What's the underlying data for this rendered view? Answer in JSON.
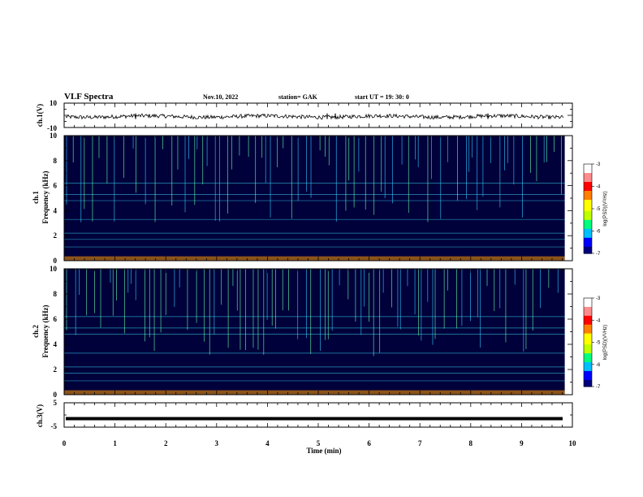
{
  "header": {
    "title": "VLF Spectra",
    "date": "Nov.10, 2022",
    "station": "station= GAK",
    "start_ut": "start  UT =   19: 30: 0"
  },
  "colorbar": {
    "label": "log(PSD)(V²/Hz)",
    "ticks": [
      "-3",
      "-4",
      "-5",
      "-6",
      "-7"
    ],
    "colors": [
      "#000000",
      "#00007f",
      "#0000ff",
      "#00bfff",
      "#00ff7f",
      "#bfff00",
      "#ffff00",
      "#ff7f00",
      "#ff0000",
      "#ff8c8c",
      "#ffffff"
    ]
  },
  "chart_data": [
    {
      "type": "line",
      "panel": "ch1-waveform",
      "ylabel": "ch.1(V)",
      "ylim": [
        -10,
        10
      ],
      "ytick_labels": [
        "10",
        "-10"
      ],
      "xlim": [
        0,
        10
      ],
      "description_values": "waveform noise around about -1 V with amplitude roughly ±2 V",
      "mean_value": -1
    },
    {
      "type": "heatmap",
      "panel": "ch1-spectrogram",
      "ylabel": "ch.1\nFrequency (kHz)",
      "ylabel_line1": "ch.1",
      "ylabel_line2": "Frequency (kHz)",
      "ylim": [
        0,
        10
      ],
      "ytick_labels": [
        "0",
        "2",
        "4",
        "6",
        "8",
        "10"
      ],
      "xlim": [
        0,
        10
      ],
      "zlabel": "log(PSD)(V²/Hz)",
      "zlim": [
        -7,
        -3
      ]
    },
    {
      "type": "heatmap",
      "panel": "ch2-spectrogram",
      "ylabel_line1": "ch.2",
      "ylabel_line2": "Frequency (kHz)",
      "ylim": [
        0,
        10
      ],
      "ytick_labels": [
        "0",
        "2",
        "4",
        "6",
        "8",
        "10"
      ],
      "xlim": [
        0,
        10
      ],
      "zlabel": "log(PSD)(V²/Hz)",
      "zlim": [
        -7,
        -3
      ]
    },
    {
      "type": "line",
      "panel": "ch3-waveform",
      "ylabel": "ch.3(V)",
      "ylim": [
        -5,
        5
      ],
      "ytick_labels": [
        "5",
        "-5"
      ],
      "xlim": [
        0,
        10
      ],
      "mean_value": -1.5
    }
  ],
  "xaxis": {
    "label": "Time (min)",
    "ticks": [
      "0",
      "1",
      "2",
      "3",
      "4",
      "5",
      "6",
      "7",
      "8",
      "9",
      "10"
    ]
  }
}
